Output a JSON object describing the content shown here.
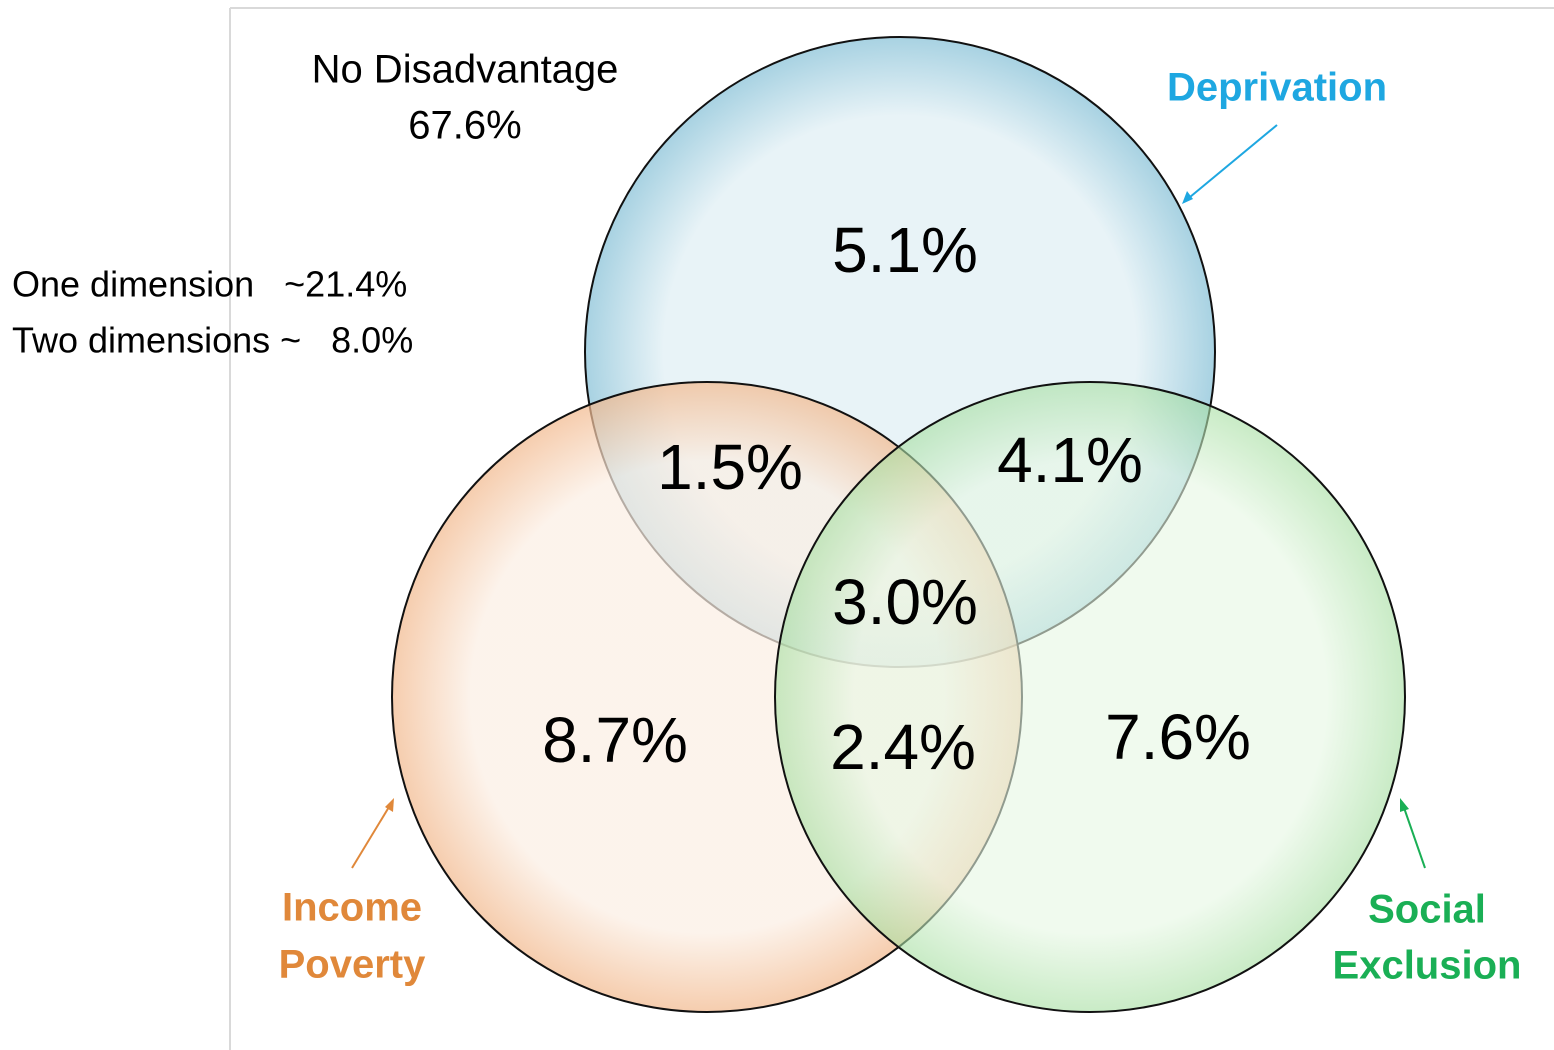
{
  "summary": {
    "no_disadvantage": {
      "label": "No Disadvantage",
      "value": "67.6%"
    },
    "lines": [
      "One dimension   ~21.4%",
      "Two dimensions ~   8.0%"
    ]
  },
  "sets": [
    {
      "name": "Deprivation",
      "lines": [
        "Deprivation"
      ]
    },
    {
      "name": "Income Poverty",
      "lines": [
        "Income",
        "Poverty"
      ]
    },
    {
      "name": "Social Exclusion",
      "lines": [
        "Social",
        "Exclusion"
      ]
    }
  ],
  "regions": {
    "deprivation_only": "5.1%",
    "deprivation_income": "1.5%",
    "deprivation_social": "4.1%",
    "all_three": "3.0%",
    "income_only": "8.7%",
    "income_social": "2.4%",
    "social_only": "7.6%"
  }
}
